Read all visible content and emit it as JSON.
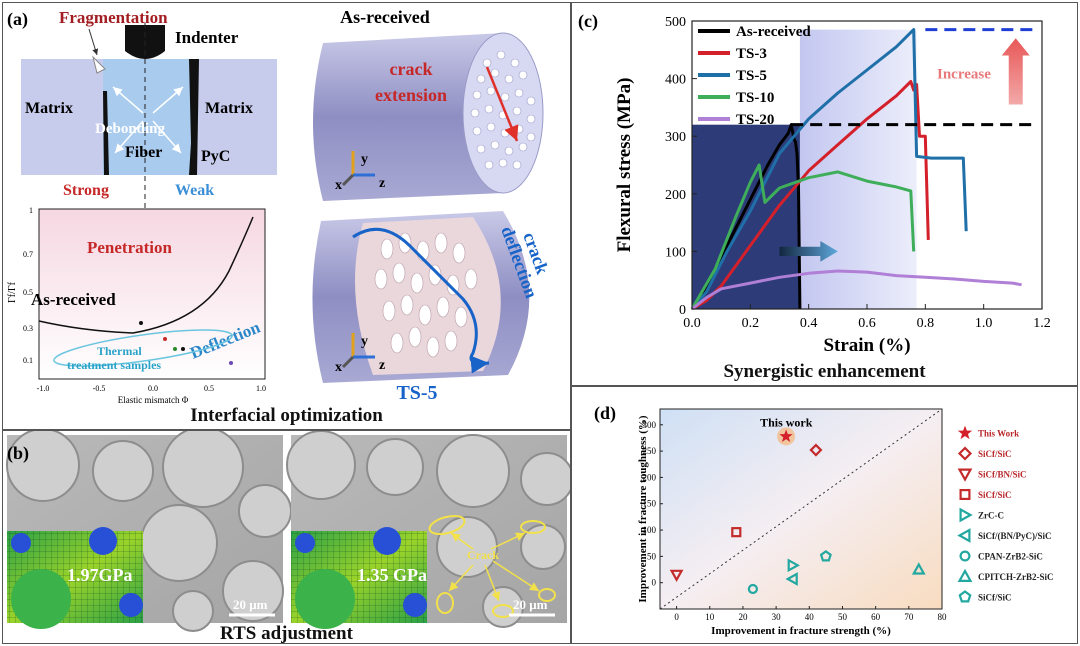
{
  "panel_a": {
    "label": "(a)",
    "fragmentation": "Fragmentation",
    "indenter": "Indenter",
    "matrix_left": "Matrix",
    "matrix_right": "Matrix",
    "debonding": "Debonding",
    "fiber": "Fiber",
    "pyc": "PyC",
    "strong": "Strong",
    "weak": "Weak",
    "graph": {
      "penetration": "Penetration",
      "as_received": "As-received",
      "deflection": "Deflection",
      "thermal": "Thermal",
      "treatment_samples": "treatment samples",
      "ylabel": "Γf/Γf",
      "xlabel": "Elastic mismatch Φ",
      "y_ticks": [
        "1",
        "0.7",
        "0.5",
        "0.3",
        "0.1"
      ],
      "x_ticks": [
        "-1.0",
        "-0.5",
        "0.0",
        "0.5",
        "1.0"
      ]
    },
    "as_received_title": "As-received",
    "crack_extension_1": "crack",
    "crack_extension_2": "extension",
    "crack_deflection_1": "crack",
    "crack_deflection_2": "deflection",
    "ts5": "TS-5",
    "axis_x": "x",
    "axis_y": "y",
    "axis_z": "z",
    "caption": "Interfacial optimization"
  },
  "panel_b": {
    "label": "(b)",
    "stress_left": "1.97GPa",
    "stress_right": "1.35 GPa",
    "crack": "Crack",
    "scale_left": "20 μm",
    "scale_right": "20 μm",
    "caption": "RTS adjustment"
  },
  "panel_c": {
    "label": "(c)",
    "increase": "Increase",
    "caption": "Synergistic enhancement",
    "chart_data": {
      "type": "line",
      "title": "",
      "xlabel": "Strain (%)",
      "ylabel": "Flexural stress (MPa)",
      "xlim": [
        0.0,
        1.2
      ],
      "ylim": [
        0,
        500
      ],
      "x_ticks": [
        "0.0",
        "0.2",
        "0.4",
        "0.6",
        "0.8",
        "1.0",
        "1.2"
      ],
      "y_ticks": [
        "0",
        "100",
        "200",
        "300",
        "400",
        "500"
      ],
      "legend_position": "top-left",
      "series": [
        {
          "name": "As-received",
          "color": "#000000",
          "points": [
            [
              0,
              0
            ],
            [
              0.05,
              40
            ],
            [
              0.12,
              110
            ],
            [
              0.2,
              190
            ],
            [
              0.26,
              250
            ],
            [
              0.3,
              285
            ],
            [
              0.33,
              305
            ],
            [
              0.34,
              320
            ],
            [
              0.35,
              295
            ],
            [
              0.355,
              290
            ],
            [
              0.36,
              270
            ],
            [
              0.365,
              210
            ],
            [
              0.37,
              0
            ]
          ]
        },
        {
          "name": "TS-3",
          "color": "#d4202a",
          "points": [
            [
              0,
              0
            ],
            [
              0.05,
              15
            ],
            [
              0.1,
              40
            ],
            [
              0.2,
              110
            ],
            [
              0.3,
              180
            ],
            [
              0.4,
              240
            ],
            [
              0.5,
              285
            ],
            [
              0.6,
              330
            ],
            [
              0.7,
              370
            ],
            [
              0.75,
              395
            ],
            [
              0.76,
              380
            ],
            [
              0.77,
              390
            ],
            [
              0.78,
              300
            ],
            [
              0.8,
              300
            ],
            [
              0.81,
              120
            ]
          ]
        },
        {
          "name": "TS-5",
          "color": "#1f6fa8",
          "points": [
            [
              0,
              0
            ],
            [
              0.05,
              30
            ],
            [
              0.12,
              100
            ],
            [
              0.2,
              170
            ],
            [
              0.3,
              270
            ],
            [
              0.4,
              330
            ],
            [
              0.5,
              375
            ],
            [
              0.6,
              415
            ],
            [
              0.7,
              455
            ],
            [
              0.76,
              485
            ],
            [
              0.77,
              265
            ],
            [
              0.82,
              262
            ],
            [
              0.9,
              262
            ],
            [
              0.93,
              262
            ],
            [
              0.94,
              135
            ]
          ]
        },
        {
          "name": "TS-10",
          "color": "#3fae5a",
          "points": [
            [
              0,
              0
            ],
            [
              0.08,
              70
            ],
            [
              0.15,
              160
            ],
            [
              0.2,
              220
            ],
            [
              0.23,
              250
            ],
            [
              0.25,
              185
            ],
            [
              0.3,
              210
            ],
            [
              0.4,
              228
            ],
            [
              0.5,
              238
            ],
            [
              0.6,
              222
            ],
            [
              0.7,
              212
            ],
            [
              0.75,
              205
            ],
            [
              0.76,
              100
            ]
          ]
        },
        {
          "name": "TS-20",
          "color": "#b07fd6",
          "points": [
            [
              0,
              0
            ],
            [
              0.05,
              20
            ],
            [
              0.1,
              35
            ],
            [
              0.2,
              45
            ],
            [
              0.3,
              55
            ],
            [
              0.4,
              62
            ],
            [
              0.5,
              66
            ],
            [
              0.6,
              64
            ],
            [
              0.7,
              58
            ],
            [
              0.8,
              55
            ],
            [
              0.9,
              52
            ],
            [
              1.0,
              48
            ],
            [
              1.1,
              45
            ],
            [
              1.13,
              42
            ]
          ]
        }
      ],
      "reference_lines": [
        {
          "y": 320,
          "x_from": 0.34,
          "x_to": 1.17,
          "color": "#000000",
          "style": "dashed"
        },
        {
          "y": 485,
          "x_from": 0.8,
          "x_to": 1.17,
          "color": "#1f3fd4",
          "style": "dashed"
        }
      ]
    }
  },
  "panel_d": {
    "label": "(d)",
    "this_work_text": "This work",
    "chart_data": {
      "type": "scatter",
      "xlabel": "Improvement in fracture strength (%)",
      "ylabel": "Improvement in fracture toughness (%)",
      "xlim": [
        -5,
        80
      ],
      "ylim": [
        -50,
        330
      ],
      "x_ticks": [
        "0",
        "10",
        "20",
        "30",
        "40",
        "50",
        "60",
        "70",
        "80"
      ],
      "y_ticks": [
        "0",
        "50",
        "100",
        "150",
        "200",
        "250",
        "300"
      ],
      "diagonal_reference": true,
      "series": [
        {
          "name": "This Work",
          "marker": "star",
          "color": "#d4202a",
          "x": [
            33
          ],
          "y": [
            278
          ]
        },
        {
          "name": "SiCf/SiC",
          "marker": "diamond",
          "color": "#c42a2a",
          "x": [
            42
          ],
          "y": [
            252
          ]
        },
        {
          "name": "SiCf/BN/SiC",
          "marker": "triangle-down",
          "color": "#c42a2a",
          "x": [
            0
          ],
          "y": [
            15
          ]
        },
        {
          "name": "SiCf/SiC",
          "marker": "square",
          "color": "#c42a2a",
          "x": [
            18
          ],
          "y": [
            96
          ]
        },
        {
          "name": "ZrC-C",
          "marker": "triangle-right",
          "color": "#22a8a0",
          "x": [
            35
          ],
          "y": [
            33
          ]
        },
        {
          "name": "SiCf/(BN/PyC)/SiC",
          "marker": "triangle-left",
          "color": "#22a8a0",
          "x": [
            35
          ],
          "y": [
            7
          ]
        },
        {
          "name": "CPAN-ZrB2-SiC",
          "marker": "circle",
          "color": "#22a8a0",
          "x": [
            23
          ],
          "y": [
            -12
          ]
        },
        {
          "name": "CPITCH-ZrB2-SiC",
          "marker": "triangle-up",
          "color": "#22a8a0",
          "x": [
            73
          ],
          "y": [
            25
          ]
        },
        {
          "name": "SiCf/SiC",
          "marker": "pentagon",
          "color": "#22a8a0",
          "x": [
            45
          ],
          "y": [
            50
          ]
        }
      ]
    }
  }
}
